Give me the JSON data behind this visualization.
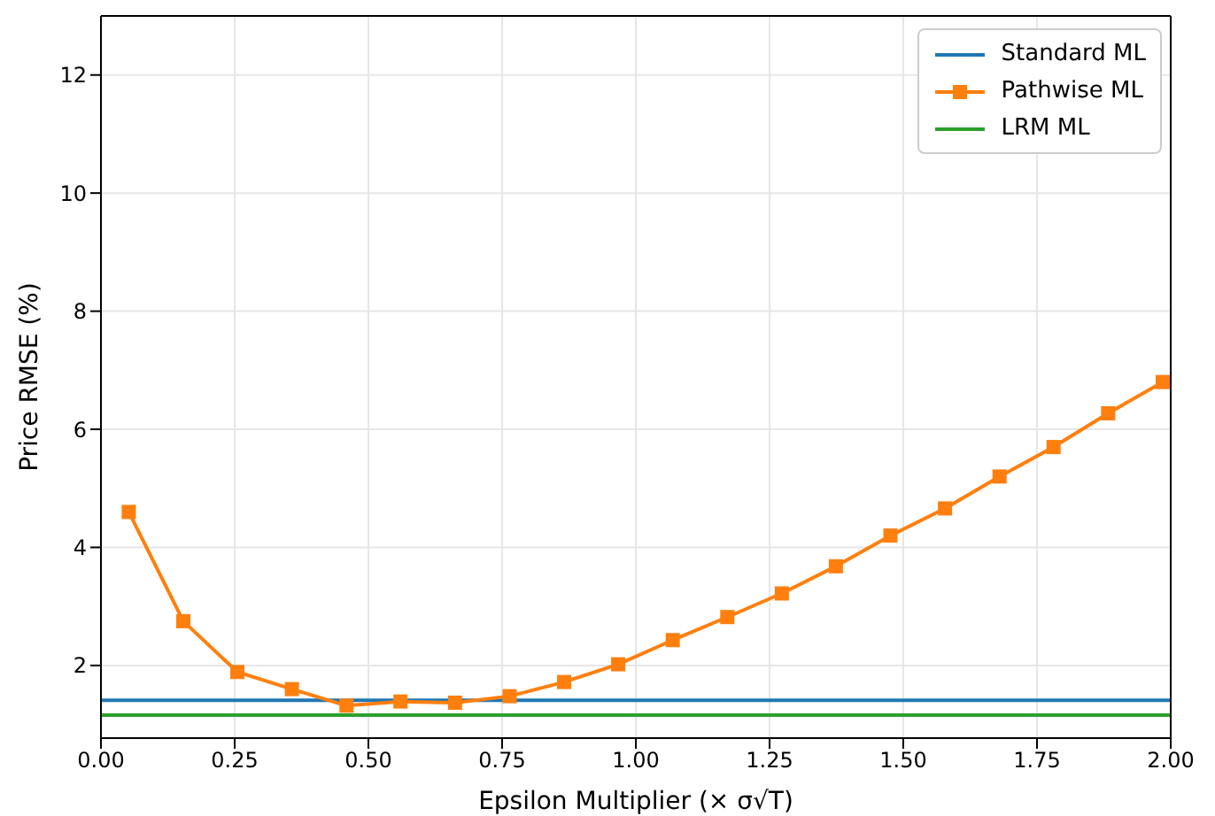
{
  "chart_data": {
    "type": "line",
    "xlabel": "Epsilon Multiplier (× σ√T)",
    "ylabel": "Price RMSE (%)",
    "xlim": [
      0,
      2
    ],
    "xticks": [
      {
        "value": 0,
        "label": "0.00"
      },
      {
        "value": 0.25,
        "label": "0.25"
      },
      {
        "value": 0.5,
        "label": "0.50"
      },
      {
        "value": 0.75,
        "label": "0.75"
      },
      {
        "value": 1,
        "label": "1.00"
      },
      {
        "value": 1.25,
        "label": "1.25"
      },
      {
        "value": 1.5,
        "label": "1.50"
      },
      {
        "value": 1.75,
        "label": "1.75"
      },
      {
        "value": 2,
        "label": "2.00"
      }
    ],
    "ylim": [
      0.77,
      13
    ],
    "yticks": [
      2,
      4,
      6,
      8,
      10,
      12
    ],
    "grid": true,
    "legend": "top right",
    "line_style": "solid",
    "series": [
      {
        "name": "Standard ML",
        "color": "#1f77b4",
        "marker": "none",
        "x": [
          0,
          2
        ],
        "values": [
          1.41,
          1.41
        ]
      },
      {
        "name": "Pathwise ML",
        "color": "#ff7f0e",
        "marker": "square",
        "x": [
          0.052,
          0.154,
          0.255,
          0.357,
          0.459,
          0.56,
          0.662,
          0.764,
          0.866,
          0.967,
          1.069,
          1.171,
          1.273,
          1.374,
          1.476,
          1.578,
          1.68,
          1.781,
          1.883,
          1.985
        ],
        "values": [
          4.6,
          2.75,
          1.89,
          1.6,
          1.32,
          1.39,
          1.37,
          1.48,
          1.72,
          2.02,
          2.43,
          2.82,
          3.22,
          3.68,
          4.2,
          4.66,
          5.2,
          5.7,
          6.27,
          6.8
        ]
      },
      {
        "name": "LRM ML",
        "color": "#2ca02c",
        "marker": "none",
        "x": [
          0,
          2
        ],
        "values": [
          1.16,
          1.16
        ]
      }
    ]
  }
}
